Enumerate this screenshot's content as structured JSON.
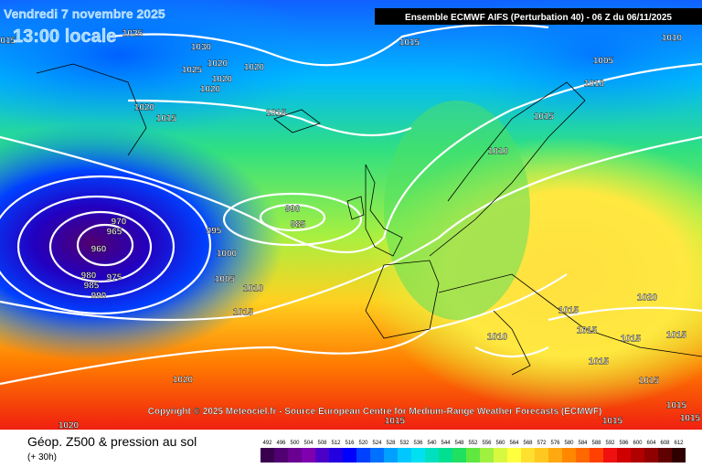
{
  "header": {
    "date": "Vendredi 7 novembre 2025",
    "time": "13:00 locale",
    "run": "Ensemble ECMWF AIFS  (Perturbation 40)  - 06 Z du 06/11/2025"
  },
  "copyright": "Copyright © 2025 Meteociel.fr - Source European Centre for Medium-Range Weather Forecasts (ECMWF)",
  "footer": {
    "title": "Géop. Z500 & pression au sol",
    "lead": "(+ 30h)"
  },
  "isobars": [
    1015,
    1025,
    1030,
    1020,
    1025,
    1020,
    1020,
    1020,
    1020,
    1015,
    1015,
    1015,
    1010,
    1005,
    1010,
    1015,
    1010,
    990,
    985,
    970,
    965,
    960,
    995,
    1000,
    980,
    975,
    985,
    990,
    1005,
    1010,
    1015,
    1015,
    1015,
    1010,
    1015,
    1015,
    1020,
    1015,
    1015,
    1020,
    1020,
    1015,
    1015,
    1015,
    1015
  ],
  "legend": {
    "values": [
      492,
      496,
      500,
      504,
      508,
      512,
      516,
      520,
      524,
      528,
      532,
      536,
      540,
      544,
      548,
      552,
      556,
      560,
      564,
      568,
      572,
      576,
      580,
      584,
      588,
      592,
      596,
      600,
      604,
      608,
      612
    ],
    "colors": [
      "#3a0050",
      "#500070",
      "#6a0090",
      "#8000b0",
      "#4b00c8",
      "#2200e0",
      "#0000ff",
      "#0040ff",
      "#0070ff",
      "#00a0ff",
      "#00c8ff",
      "#00e0f0",
      "#00e0c0",
      "#00e090",
      "#20e060",
      "#60e840",
      "#a0f040",
      "#d8f840",
      "#ffff40",
      "#ffe030",
      "#ffc820",
      "#ffa810",
      "#ff8800",
      "#ff6800",
      "#ff4000",
      "#f01010",
      "#d00000",
      "#b00000",
      "#900000",
      "#600000",
      "#300000"
    ]
  }
}
